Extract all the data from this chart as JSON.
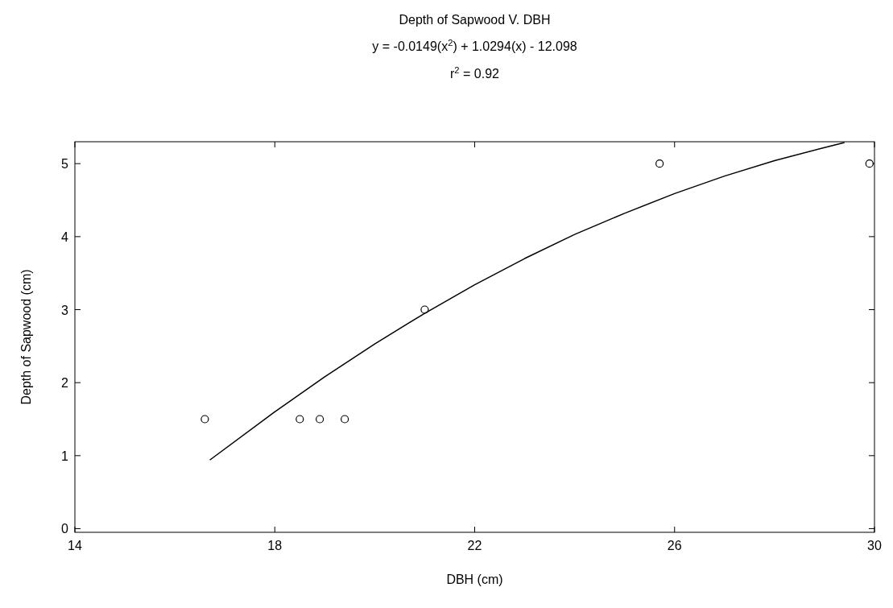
{
  "chart_data": {
    "type": "scatter",
    "title": "Depth of Sapwood V. DBH",
    "subtitle": "y = -0.0149(x$^{2}$) + 1.0294(x) - 12.098",
    "annotations": [
      "r$^{2}$ = 0.92"
    ],
    "xlabel": "DBH (cm)",
    "ylabel": "Depth of Sapwood (cm)",
    "xlim": [
      14,
      30
    ],
    "xticks": [
      14,
      18,
      22,
      26,
      30
    ],
    "ylim": [
      -0.05,
      5.3
    ],
    "yticks": [
      0,
      1,
      2,
      3,
      4,
      5
    ],
    "grid": false,
    "series": [
      {
        "marker": "circle",
        "color": "#000000",
        "x": [
          16.6,
          18.5,
          18.9,
          19.4,
          21.0,
          25.7,
          29.9
        ],
        "values": [
          1.5,
          1.5,
          1.5,
          1.5,
          3.0,
          5.0,
          5.0
        ]
      },
      {
        "type": "line",
        "marker": "none",
        "line_style": "solid",
        "color": "#000000",
        "x": [
          16.7,
          18,
          19,
          20,
          21,
          22,
          23,
          24,
          25,
          26,
          27,
          28,
          29,
          29.4
        ],
        "values": [
          0.94,
          1.6,
          2.08,
          2.53,
          2.95,
          3.34,
          3.7,
          4.03,
          4.32,
          4.59,
          4.83,
          5.04,
          5.22,
          5.29
        ]
      }
    ]
  }
}
